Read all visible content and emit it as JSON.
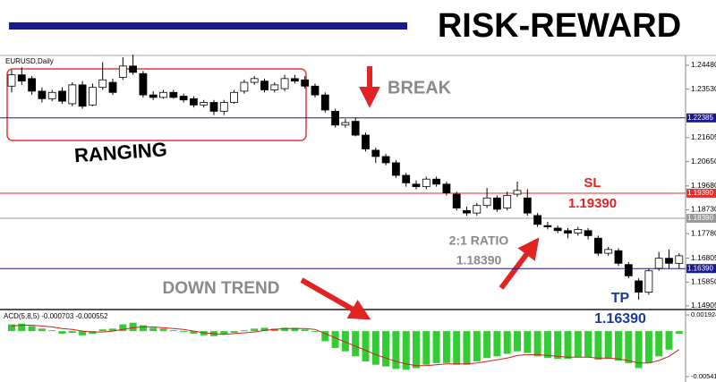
{
  "chart_data": [
    {
      "type": "candlestick",
      "title": "RISK-REWARD",
      "subtitle": "EURUSD,Daily",
      "open": [
        1.2365,
        1.241,
        1.2395,
        1.2345,
        1.2315,
        1.2345,
        1.2295,
        1.237,
        1.229,
        1.236,
        1.238,
        1.24,
        1.2445,
        1.2415,
        1.233,
        1.232,
        1.234,
        1.2325,
        1.2315,
        1.229,
        1.23,
        1.2265,
        1.23,
        1.2345,
        1.238,
        1.2385,
        1.235,
        1.2355,
        1.2395,
        1.239,
        1.2365,
        1.233,
        1.2265,
        1.221,
        1.2225,
        1.217,
        1.211,
        1.2085,
        1.206,
        1.201,
        1.1975,
        1.1965,
        1.1995,
        1.1975,
        1.1935,
        1.187,
        1.186,
        1.189,
        1.192,
        1.188,
        1.1935,
        1.192,
        1.185,
        1.181,
        1.18,
        1.179,
        1.178,
        1.179,
        1.176,
        1.17,
        1.171,
        1.1655,
        1.159,
        1.1545,
        1.164,
        1.168,
        1.166
      ],
      "high": [
        1.243,
        1.244,
        1.2405,
        1.236,
        1.235,
        1.236,
        1.238,
        1.2385,
        1.2375,
        1.246,
        1.2395,
        1.248,
        1.249,
        1.2425,
        1.2345,
        1.235,
        1.235,
        1.2335,
        1.2325,
        1.231,
        1.231,
        1.231,
        1.235,
        1.239,
        1.2405,
        1.2395,
        1.238,
        1.241,
        1.241,
        1.2405,
        1.2375,
        1.234,
        1.2275,
        1.2235,
        1.224,
        1.218,
        1.212,
        1.2095,
        1.207,
        1.202,
        1.199,
        1.2005,
        1.2005,
        1.1985,
        1.1945,
        1.1885,
        1.19,
        1.196,
        1.193,
        1.1945,
        1.1985,
        1.1955,
        1.186,
        1.1825,
        1.181,
        1.18,
        1.1805,
        1.18,
        1.177,
        1.1725,
        1.172,
        1.1665,
        1.16,
        1.164,
        1.1705,
        1.1715,
        1.17
      ],
      "low": [
        1.234,
        1.237,
        1.233,
        1.23,
        1.2305,
        1.2295,
        1.2285,
        1.2275,
        1.2285,
        1.235,
        1.233,
        1.239,
        1.241,
        1.232,
        1.231,
        1.2315,
        1.2315,
        1.23,
        1.228,
        1.228,
        1.225,
        1.225,
        1.2295,
        1.2335,
        1.237,
        1.234,
        1.234,
        1.2345,
        1.2375,
        1.2355,
        1.232,
        1.226,
        1.22,
        1.22,
        1.2165,
        1.2105,
        1.206,
        1.205,
        1.2,
        1.1965,
        1.1955,
        1.1955,
        1.1965,
        1.193,
        1.187,
        1.185,
        1.185,
        1.188,
        1.1865,
        1.187,
        1.1925,
        1.185,
        1.1805,
        1.1795,
        1.178,
        1.176,
        1.177,
        1.1755,
        1.169,
        1.169,
        1.165,
        1.16,
        1.1515,
        1.1535,
        1.163,
        1.164,
        1.164
      ],
      "close": [
        1.241,
        1.2385,
        1.2345,
        1.2315,
        1.234,
        1.2305,
        1.237,
        1.2285,
        1.236,
        1.239,
        1.234,
        1.2445,
        1.242,
        1.233,
        1.232,
        1.234,
        1.232,
        1.231,
        1.229,
        1.23,
        1.2265,
        1.23,
        1.234,
        1.238,
        1.2395,
        1.235,
        1.237,
        1.2395,
        1.2385,
        1.2365,
        1.233,
        1.227,
        1.221,
        1.222,
        1.217,
        1.2115,
        1.2085,
        1.206,
        1.201,
        1.198,
        1.1965,
        1.1995,
        1.1975,
        1.194,
        1.188,
        1.186,
        1.189,
        1.192,
        1.1875,
        1.193,
        1.195,
        1.186,
        1.1815,
        1.1805,
        1.179,
        1.178,
        1.1795,
        1.177,
        1.17,
        1.1715,
        1.166,
        1.161,
        1.1545,
        1.163,
        1.168,
        1.166,
        1.169
      ],
      "ylim": [
        1.1476,
        1.2487
      ],
      "yticks": [
        {
          "value": 1.2448,
          "label": "1.24480"
        },
        {
          "value": 1.2353,
          "label": "1.23530"
        },
        {
          "value": 1.21605,
          "label": "1.21605"
        },
        {
          "value": 1.2065,
          "label": "1.20650"
        },
        {
          "value": 1.1968,
          "label": "1.19680"
        },
        {
          "value": 1.1873,
          "label": "1.18730"
        },
        {
          "value": 1.1778,
          "label": "1.17780"
        },
        {
          "value": 1.16805,
          "label": "1.16805"
        },
        {
          "value": 1.1585,
          "label": "1.15850"
        },
        {
          "value": 1.14905,
          "label": "1.14905"
        }
      ],
      "levels": [
        {
          "value": 1.22385,
          "label": "1.22385",
          "color": "#1a1a8c"
        },
        {
          "value": 1.1939,
          "label": "1.19390",
          "color": "#e03030"
        },
        {
          "value": 1.1839,
          "label": "1.18390",
          "color": "#999999"
        },
        {
          "value": 1.1639,
          "label": "1.16390",
          "color": "#1a1a8c"
        }
      ],
      "annotations": [
        "BREAK",
        "RANGING",
        "DOWN TREND",
        "SL",
        "1.19390",
        "2:1 RATIO",
        "1.18390",
        "TP",
        "1.16390"
      ]
    },
    {
      "type": "macd",
      "title": "ACD(5,8,5) -0.000703 -0.000552",
      "series": [
        {
          "name": "histogram",
          "color": "#33cc33",
          "values": [
            0.0008,
            0.0009,
            0.0006,
            0.0003,
            0.0001,
            -0.0003,
            -0.0002,
            -0.0005,
            -0.0003,
            0.0002,
            0.0003,
            0.0008,
            0.001,
            0.0007,
            0.0004,
            0.0003,
            0.0001,
            -0.0001,
            -0.0003,
            -0.0005,
            -0.0006,
            -0.0004,
            -0.0002,
            0.0001,
            0.0003,
            0.0004,
            0.0003,
            0.0004,
            0.0004,
            0.0002,
            -0.0001,
            -0.0012,
            -0.002,
            -0.0024,
            -0.003,
            -0.0036,
            -0.004,
            -0.0042,
            -0.0045,
            -0.0046,
            -0.0044,
            -0.004,
            -0.0038,
            -0.0038,
            -0.004,
            -0.004,
            -0.0036,
            -0.0032,
            -0.003,
            -0.0027,
            -0.0024,
            -0.0026,
            -0.003,
            -0.0032,
            -0.0033,
            -0.0033,
            -0.0031,
            -0.0031,
            -0.0034,
            -0.0033,
            -0.0035,
            -0.0038,
            -0.0044,
            -0.0038,
            -0.003,
            -0.0022,
            -0.0003
          ]
        },
        {
          "name": "signal",
          "color": "#d02020",
          "values": [
            0.0006,
            0.0007,
            0.0007,
            0.0006,
            0.0005,
            0.0003,
            0.0002,
            0.0,
            -0.0001,
            -0.0001,
            0.0,
            0.0002,
            0.0004,
            0.0005,
            0.0005,
            0.0004,
            0.0003,
            0.0002,
            0.0,
            -0.0002,
            -0.0003,
            -0.0004,
            -0.0003,
            -0.0002,
            -0.0001,
            0.0001,
            0.0002,
            0.0003,
            0.0003,
            0.0003,
            0.0002,
            -0.0003,
            -0.0008,
            -0.0013,
            -0.0018,
            -0.0023,
            -0.0028,
            -0.0032,
            -0.0036,
            -0.0039,
            -0.0041,
            -0.0041,
            -0.004,
            -0.0039,
            -0.0039,
            -0.0039,
            -0.0038,
            -0.0036,
            -0.0034,
            -0.0032,
            -0.0029,
            -0.0028,
            -0.0028,
            -0.0029,
            -0.003,
            -0.0031,
            -0.0031,
            -0.0031,
            -0.0032,
            -0.0032,
            -0.0033,
            -0.0035,
            -0.0038,
            -0.0038,
            -0.0035,
            -0.003,
            -0.0022
          ]
        }
      ],
      "ylim": [
        -0.00605,
        0.00246
      ],
      "yticks": [
        0.001924,
        -0.00541
      ]
    }
  ]
}
